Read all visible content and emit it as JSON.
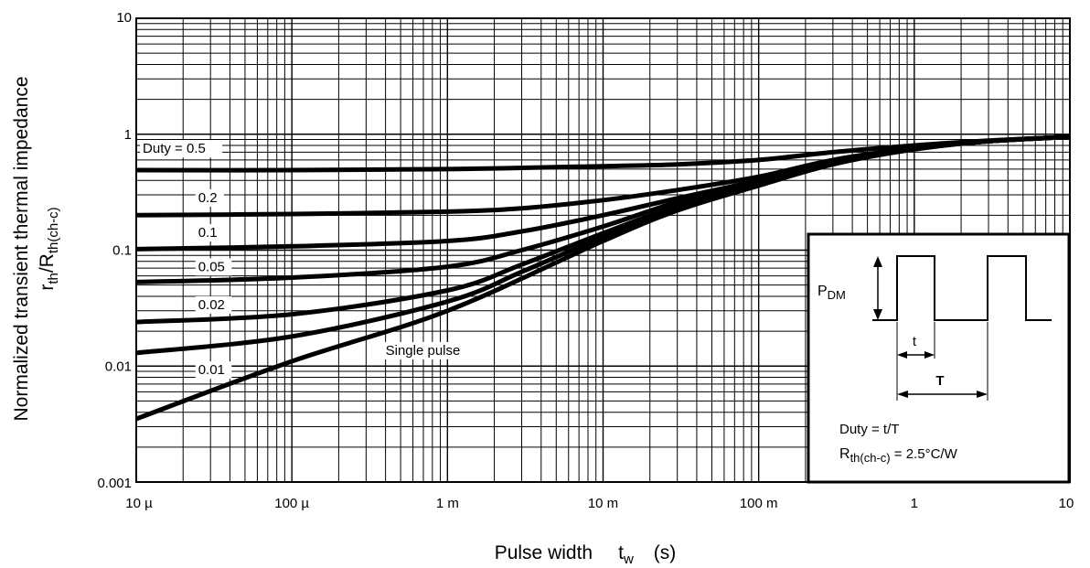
{
  "chart_data": {
    "type": "line",
    "title": "",
    "xscale": "log",
    "yscale": "log",
    "xlim": [
      1e-05,
      10
    ],
    "ylim": [
      0.001,
      10
    ],
    "grid": true,
    "xlabel": {
      "main": "Pulse width",
      "symbol": "t",
      "subscript": "w",
      "unit": "(s)"
    },
    "ylabel": {
      "line1": "Normalized transient thermal impedance",
      "line2_prefix": "r",
      "line2_sub1": "th",
      "line2_mid": "/R",
      "line2_sub2": "th(ch-c)"
    },
    "x_ticks": [
      {
        "value": 1e-05,
        "label": "10 µ"
      },
      {
        "value": 0.0001,
        "label": "100 µ"
      },
      {
        "value": 0.001,
        "label": "1 m"
      },
      {
        "value": 0.01,
        "label": "10 m"
      },
      {
        "value": 0.1,
        "label": "100 m"
      },
      {
        "value": 1,
        "label": "1"
      },
      {
        "value": 10,
        "label": "10"
      }
    ],
    "y_ticks": [
      {
        "value": 0.001,
        "label": "0.001"
      },
      {
        "value": 0.01,
        "label": "0.01"
      },
      {
        "value": 0.1,
        "label": "0.1"
      },
      {
        "value": 1,
        "label": "1"
      },
      {
        "value": 10,
        "label": "10"
      }
    ],
    "series": [
      {
        "name": "Duty = 0.5",
        "points": [
          [
            1e-05,
            0.49
          ],
          [
            0.0001,
            0.49
          ],
          [
            0.001,
            0.5
          ],
          [
            0.01,
            0.53
          ],
          [
            0.03,
            0.55
          ],
          [
            0.1,
            0.6
          ],
          [
            0.3,
            0.7
          ],
          [
            1,
            0.8
          ],
          [
            3,
            0.88
          ],
          [
            10,
            0.95
          ]
        ]
      },
      {
        "name": "0.2",
        "points": [
          [
            1e-05,
            0.2
          ],
          [
            0.0001,
            0.205
          ],
          [
            0.001,
            0.215
          ],
          [
            0.003,
            0.23
          ],
          [
            0.01,
            0.27
          ],
          [
            0.03,
            0.33
          ],
          [
            0.1,
            0.43
          ],
          [
            0.3,
            0.6
          ],
          [
            1,
            0.76
          ],
          [
            3,
            0.87
          ],
          [
            10,
            0.95
          ]
        ]
      },
      {
        "name": "0.1",
        "points": [
          [
            1e-05,
            0.102
          ],
          [
            0.0001,
            0.108
          ],
          [
            0.001,
            0.12
          ],
          [
            0.003,
            0.145
          ],
          [
            0.01,
            0.2
          ],
          [
            0.03,
            0.28
          ],
          [
            0.1,
            0.4
          ],
          [
            0.3,
            0.58
          ],
          [
            1,
            0.75
          ],
          [
            3,
            0.87
          ],
          [
            10,
            0.95
          ]
        ]
      },
      {
        "name": "0.05",
        "points": [
          [
            1e-05,
            0.053
          ],
          [
            0.0001,
            0.058
          ],
          [
            0.001,
            0.072
          ],
          [
            0.003,
            0.1
          ],
          [
            0.01,
            0.16
          ],
          [
            0.03,
            0.26
          ],
          [
            0.1,
            0.4
          ],
          [
            0.3,
            0.58
          ],
          [
            1,
            0.75
          ],
          [
            3,
            0.87
          ],
          [
            10,
            0.95
          ]
        ]
      },
      {
        "name": "0.02",
        "points": [
          [
            1e-05,
            0.024
          ],
          [
            0.0001,
            0.028
          ],
          [
            0.001,
            0.045
          ],
          [
            0.003,
            0.075
          ],
          [
            0.01,
            0.14
          ],
          [
            0.03,
            0.24
          ],
          [
            0.1,
            0.38
          ],
          [
            0.3,
            0.57
          ],
          [
            1,
            0.75
          ],
          [
            3,
            0.87
          ],
          [
            10,
            0.95
          ]
        ]
      },
      {
        "name": "0.01",
        "points": [
          [
            1e-05,
            0.013
          ],
          [
            0.0001,
            0.018
          ],
          [
            0.001,
            0.036
          ],
          [
            0.003,
            0.065
          ],
          [
            0.01,
            0.13
          ],
          [
            0.03,
            0.23
          ],
          [
            0.1,
            0.37
          ],
          [
            0.3,
            0.56
          ],
          [
            1,
            0.75
          ],
          [
            3,
            0.87
          ],
          [
            10,
            0.95
          ]
        ]
      },
      {
        "name": "Single pulse",
        "points": [
          [
            1e-05,
            0.0035
          ],
          [
            0.0001,
            0.011
          ],
          [
            0.001,
            0.03
          ],
          [
            0.01,
            0.12
          ],
          [
            0.03,
            0.22
          ],
          [
            0.1,
            0.36
          ],
          [
            0.3,
            0.55
          ],
          [
            1,
            0.74
          ],
          [
            3,
            0.87
          ],
          [
            10,
            0.95
          ]
        ]
      }
    ],
    "series_labels": [
      {
        "text": "Duty = 0.5",
        "x": 1.1e-05,
        "y": 0.69
      },
      {
        "text": "0.2",
        "x": 2.5e-05,
        "y": 0.26
      },
      {
        "text": "0.1",
        "x": 2.5e-05,
        "y": 0.13
      },
      {
        "text": "0.05",
        "x": 2.5e-05,
        "y": 0.066
      },
      {
        "text": "0.02",
        "x": 2.5e-05,
        "y": 0.031
      },
      {
        "text": "0.01",
        "x": 2.5e-05,
        "y": 0.0085
      },
      {
        "text": "Single pulse",
        "x": 0.0004,
        "y": 0.0125
      }
    ],
    "inset": {
      "pdm_label": "P",
      "pdm_sub": "DM",
      "t_label": "t",
      "T_label": "T",
      "duty_text": "Duty = t/T",
      "rth_prefix": "R",
      "rth_sub": "th(ch-c)",
      "rth_value": " = 2.5°C/W"
    }
  }
}
